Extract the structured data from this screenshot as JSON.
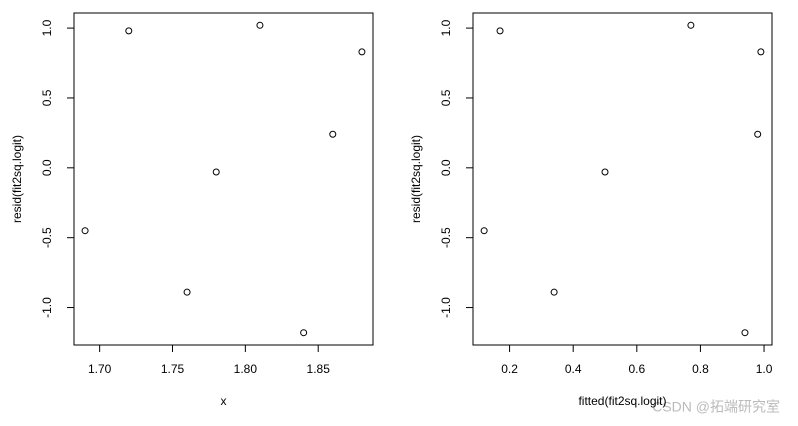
{
  "chart_data": [
    {
      "type": "scatter",
      "x_label": "x",
      "y_label": "resid(fit2sq.logit)",
      "x": [
        1.69,
        1.72,
        1.76,
        1.78,
        1.81,
        1.84,
        1.86,
        1.88
      ],
      "values": [
        -0.45,
        0.98,
        -0.89,
        -0.03,
        1.02,
        -1.18,
        0.24,
        0.83
      ],
      "color": "#000000",
      "xlim": [
        1.6824,
        1.8876
      ],
      "ylim": [
        -1.268,
        1.108
      ],
      "xticks": [
        {
          "value": 1.7,
          "label": "1.70"
        },
        1.75,
        {
          "value": 1.8,
          "label": "1.80"
        },
        1.85
      ],
      "yticks": [
        {
          "value": -1,
          "label": "-1.0"
        },
        -0.5,
        {
          "value": 0,
          "label": "0.0"
        },
        0.5,
        {
          "value": 1,
          "label": "1.0"
        }
      ]
    },
    {
      "type": "scatter",
      "x_label": "fitted(fit2sq.logit)",
      "y_label": "resid(fit2sq.logit)",
      "x": [
        0.12,
        0.17,
        0.34,
        0.5,
        0.77,
        0.94,
        0.98,
        0.99
      ],
      "values": [
        -0.45,
        0.98,
        -0.89,
        -0.03,
        1.02,
        -1.18,
        0.24,
        0.83
      ],
      "color": "#000000",
      "xlim": [
        0.085,
        1.025
      ],
      "ylim": [
        -1.268,
        1.108
      ],
      "xticks": [
        0.2,
        0.4,
        0.6,
        0.8,
        {
          "value": 1,
          "label": "1.0"
        }
      ],
      "yticks": [
        {
          "value": -1,
          "label": "-1.0"
        },
        -0.5,
        {
          "value": 0,
          "label": "0.0"
        },
        0.5,
        {
          "value": 1,
          "label": "1.0"
        }
      ]
    }
  ],
  "watermark": "CSDN @拓端研究室"
}
